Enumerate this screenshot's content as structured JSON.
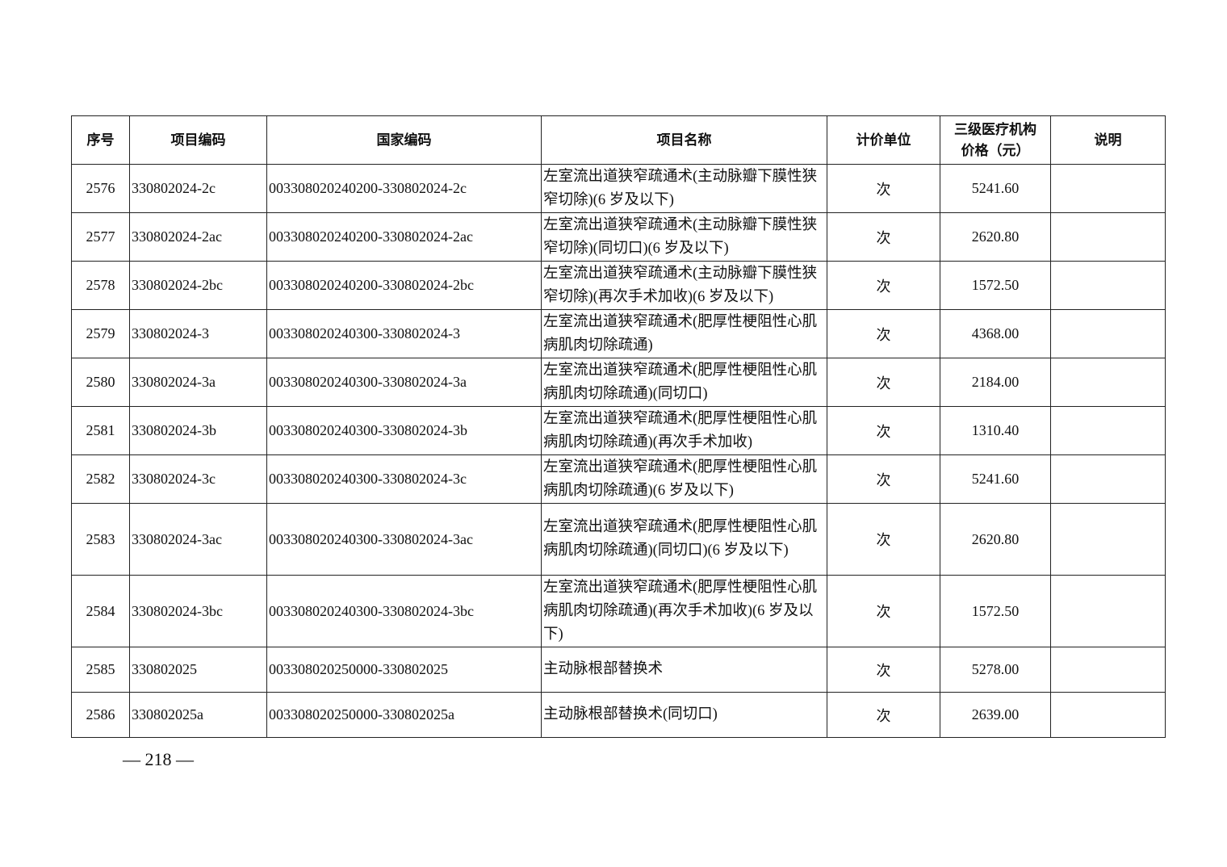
{
  "table": {
    "headers": [
      "序号",
      "项目编码",
      "国家编码",
      "项目名称",
      "计价单位",
      "三级医疗机构价格（元）",
      "说明"
    ],
    "rows": [
      {
        "no": "2576",
        "code": "330802024-2c",
        "national": "003308020240200-330802024-2c",
        "name": "左室流出道狭窄疏通术(主动脉瓣下膜性狭窄切除)(6 岁及以下)",
        "unit": "次",
        "price": "5241.60",
        "note": "",
        "h": "r2"
      },
      {
        "no": "2577",
        "code": "330802024-2ac",
        "national": "003308020240200-330802024-2ac",
        "name": "左室流出道狭窄疏通术(主动脉瓣下膜性狭窄切除)(同切口)(6 岁及以下)",
        "unit": "次",
        "price": "2620.80",
        "note": "",
        "h": "r2"
      },
      {
        "no": "2578",
        "code": "330802024-2bc",
        "national": "003308020240200-330802024-2bc",
        "name": "左室流出道狭窄疏通术(主动脉瓣下膜性狭窄切除)(再次手术加收)(6 岁及以下)",
        "unit": "次",
        "price": "1572.50",
        "note": "",
        "h": "r2"
      },
      {
        "no": "2579",
        "code": "330802024-3",
        "national": "003308020240300-330802024-3",
        "name": "左室流出道狭窄疏通术(肥厚性梗阻性心肌病肌肉切除疏通)",
        "unit": "次",
        "price": "4368.00",
        "note": "",
        "h": "r2"
      },
      {
        "no": "2580",
        "code": "330802024-3a",
        "national": "003308020240300-330802024-3a",
        "name": "左室流出道狭窄疏通术(肥厚性梗阻性心肌病肌肉切除疏通)(同切口)",
        "unit": "次",
        "price": "2184.00",
        "note": "",
        "h": "r2"
      },
      {
        "no": "2581",
        "code": "330802024-3b",
        "national": "003308020240300-330802024-3b",
        "name": "左室流出道狭窄疏通术(肥厚性梗阻性心肌病肌肉切除疏通)(再次手术加收)",
        "unit": "次",
        "price": "1310.40",
        "note": "",
        "h": "r2"
      },
      {
        "no": "2582",
        "code": "330802024-3c",
        "national": "003308020240300-330802024-3c",
        "name": "左室流出道狭窄疏通术(肥厚性梗阻性心肌病肌肉切除疏通)(6 岁及以下)",
        "unit": "次",
        "price": "5241.60",
        "note": "",
        "h": "r2"
      },
      {
        "no": "2583",
        "code": "330802024-3ac",
        "national": "003308020240300-330802024-3ac",
        "name": "左室流出道狭窄疏通术(肥厚性梗阻性心肌病肌肉切除疏通)(同切口)(6 岁及以下)",
        "unit": "次",
        "price": "2620.80",
        "note": "",
        "h": "r3"
      },
      {
        "no": "2584",
        "code": "330802024-3bc",
        "national": "003308020240300-330802024-3bc",
        "name": "左室流出道狭窄疏通术(肥厚性梗阻性心肌病肌肉切除疏通)(再次手术加收)(6 岁及以下)",
        "unit": "次",
        "price": "1572.50",
        "note": "",
        "h": "r3"
      },
      {
        "no": "2585",
        "code": "330802025",
        "national": "003308020250000-330802025",
        "name": "主动脉根部替换术",
        "unit": "次",
        "price": "5278.00",
        "note": "",
        "h": "r1"
      },
      {
        "no": "2586",
        "code": "330802025a",
        "national": "003308020250000-330802025a",
        "name": "主动脉根部替换术(同切口)",
        "unit": "次",
        "price": "2639.00",
        "note": "",
        "h": "r1"
      }
    ]
  },
  "footer": {
    "page": "— 218 —"
  }
}
